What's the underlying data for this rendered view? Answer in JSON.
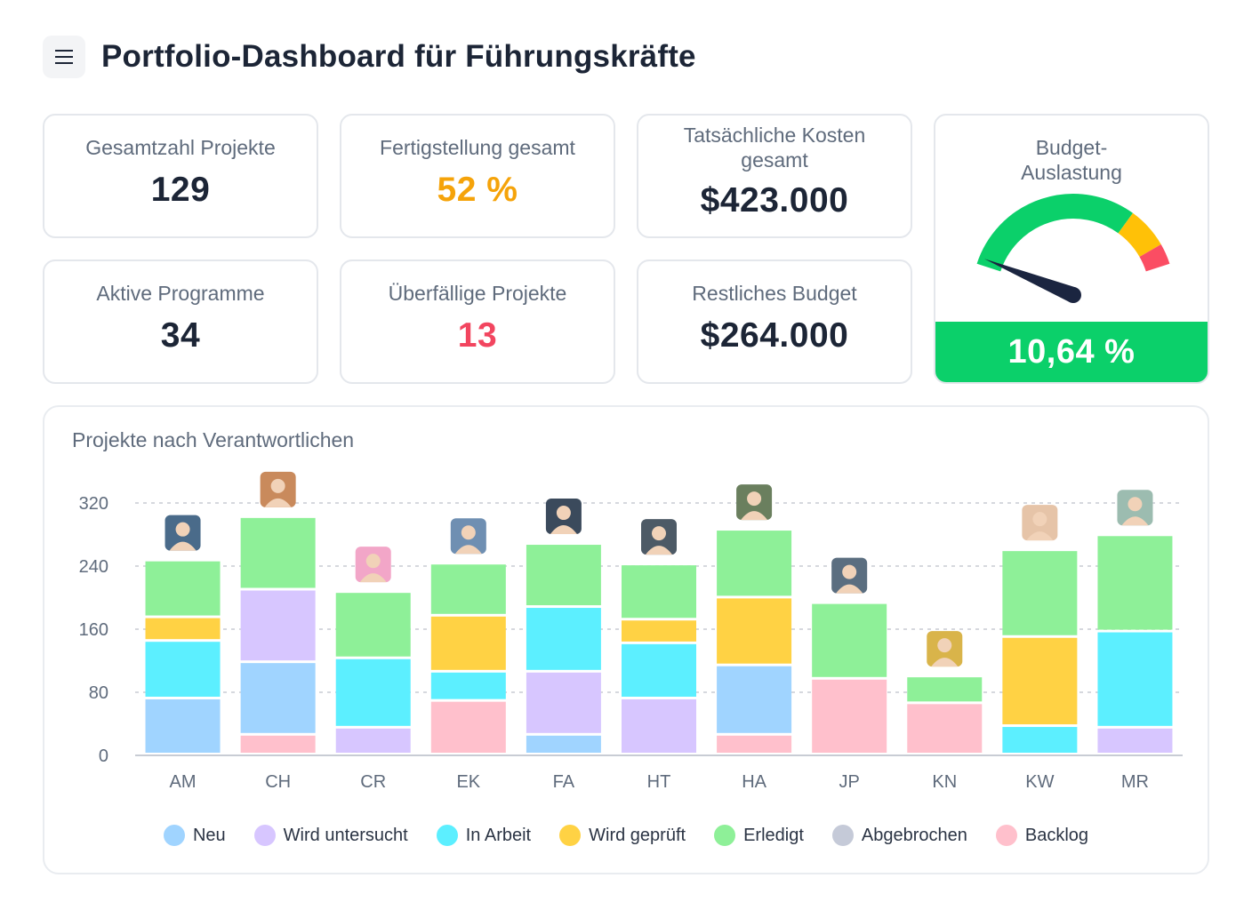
{
  "header": {
    "title": "Portfolio-Dashboard für Führungskräfte",
    "menu_icon": "hamburger-menu-icon"
  },
  "kpis": {
    "total_projects": {
      "label": "Gesamtzahl Projekte",
      "value": "129"
    },
    "completion": {
      "label": "Fertigstellung gesamt",
      "value": "52 %",
      "color": "#f5a30a"
    },
    "actual_costs": {
      "label": "Tatsächliche Kosten gesamt",
      "value": "$423.000"
    },
    "active_programs": {
      "label": "Aktive Programme",
      "value": "34"
    },
    "overdue_projects": {
      "label": "Überfällige Projekte",
      "value": "13",
      "color": "#f2455f"
    },
    "remaining_budget": {
      "label": "Restliches Budget",
      "value": "$264.000"
    }
  },
  "gauge": {
    "label": "Budget-Auslastung",
    "value_text": "10,64 %",
    "value": 0.1064,
    "colors": {
      "green": "#0bd06a",
      "yellow": "#ffc107",
      "red": "#fb4d63",
      "band": "#0bd06a",
      "needle": "#1b2540"
    }
  },
  "chart_data": {
    "type": "bar",
    "stacked": true,
    "title": "Projekte nach Verantwortlichen",
    "categories": [
      "AM",
      "CH",
      "CR",
      "EK",
      "FA",
      "HT",
      "HA",
      "JP",
      "KN",
      "KW",
      "MR"
    ],
    "ylim": [
      0,
      320
    ],
    "yticks": [
      0,
      80,
      160,
      240,
      320
    ],
    "grid": true,
    "legend_position": "bottom",
    "series": [
      {
        "name": "Backlog",
        "color": "#ffc0cc",
        "values": [
          0,
          25,
          0,
          68,
          0,
          0,
          25,
          96,
          65,
          0,
          0
        ]
      },
      {
        "name": "Neu",
        "color": "#a0d4ff",
        "values": [
          71,
          92,
          0,
          0,
          25,
          0,
          88,
          0,
          0,
          0,
          0
        ]
      },
      {
        "name": "Wird untersucht",
        "color": "#d7c6ff",
        "values": [
          0,
          92,
          34,
          0,
          80,
          71,
          0,
          0,
          0,
          0,
          34
        ]
      },
      {
        "name": "In Arbeit",
        "color": "#5cefff",
        "values": [
          73,
          0,
          88,
          37,
          82,
          70,
          0,
          0,
          0,
          36,
          122
        ]
      },
      {
        "name": "Wird geprüft",
        "color": "#ffd244",
        "values": [
          30,
          0,
          0,
          71,
          0,
          30,
          86,
          0,
          0,
          113,
          0
        ]
      },
      {
        "name": "Erledigt",
        "color": "#8ef098",
        "values": [
          72,
          92,
          84,
          66,
          80,
          70,
          86,
          96,
          34,
          110,
          122
        ]
      },
      {
        "name": "Abgebrochen",
        "color": "#c5cad8",
        "values": [
          0,
          0,
          0,
          0,
          0,
          0,
          0,
          0,
          0,
          0,
          0
        ]
      }
    ],
    "segment_order_note": "",
    "avatar_colors": [
      "#4a6b8a",
      "#c98a5c",
      "#f2a6c8",
      "#6f8fb2",
      "#3b4a5c",
      "#4d5a66",
      "#6a7f5e",
      "#5b6e80",
      "#d9b44a",
      "#e6c4a8",
      "#9cbcb0"
    ]
  },
  "legend": [
    {
      "name": "Neu",
      "color": "#a0d4ff"
    },
    {
      "name": "Wird untersucht",
      "color": "#d7c6ff"
    },
    {
      "name": "In Arbeit",
      "color": "#5cefff"
    },
    {
      "name": "Wird geprüft",
      "color": "#ffd244"
    },
    {
      "name": "Erledigt",
      "color": "#8ef098"
    },
    {
      "name": "Abgebrochen",
      "color": "#c5cad8"
    },
    {
      "name": "Backlog",
      "color": "#ffc0cc"
    }
  ]
}
